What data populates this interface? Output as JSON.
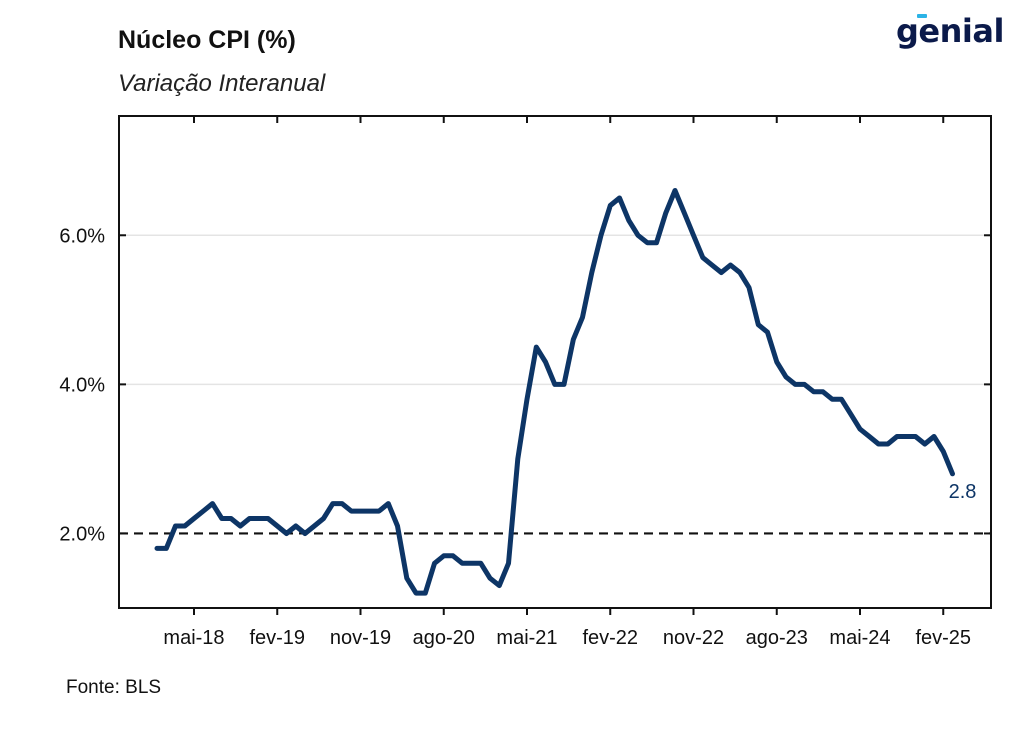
{
  "chart_data": {
    "type": "line",
    "title": "Núcleo CPI (%)",
    "subtitle": "Variação Interanual",
    "source": "Fonte: BLS",
    "brand": "genial",
    "x_tick_labels": [
      "mai-18",
      "fev-19",
      "nov-19",
      "ago-20",
      "mai-21",
      "fev-22",
      "nov-22",
      "ago-23",
      "mai-24",
      "fev-25"
    ],
    "y_tick_labels": [
      "2.0%",
      "4.0%",
      "6.0%"
    ],
    "y_ticks": [
      2.0,
      4.0,
      6.0
    ],
    "ylim": [
      1.0,
      7.6
    ],
    "reference_line": 2.0,
    "grid": "horizontal",
    "line_color": "#0d3566",
    "end_label": "2.8",
    "series": [
      {
        "x": [
          "jan-18",
          "fev-18",
          "mar-18",
          "abr-18",
          "mai-18",
          "jun-18",
          "jul-18",
          "ago-18",
          "set-18",
          "out-18",
          "nov-18",
          "dez-18",
          "jan-19",
          "fev-19",
          "mar-19",
          "abr-19",
          "mai-19",
          "jun-19",
          "jul-19",
          "ago-19",
          "set-19",
          "out-19",
          "nov-19",
          "dez-19",
          "jan-20",
          "fev-20",
          "mar-20",
          "abr-20",
          "mai-20",
          "jun-20",
          "jul-20",
          "ago-20",
          "set-20",
          "out-20",
          "nov-20",
          "dez-20",
          "jan-21",
          "fev-21",
          "mar-21",
          "abr-21",
          "mai-21",
          "jun-21",
          "jul-21",
          "ago-21",
          "set-21",
          "out-21",
          "nov-21",
          "dez-21",
          "jan-22",
          "fev-22",
          "mar-22",
          "abr-22",
          "mai-22",
          "jun-22",
          "jul-22",
          "ago-22",
          "set-22",
          "out-22",
          "nov-22",
          "dez-22",
          "jan-23",
          "fev-23",
          "mar-23",
          "abr-23",
          "mai-23",
          "jun-23",
          "jul-23",
          "ago-23",
          "set-23",
          "out-23",
          "nov-23",
          "dez-23",
          "jan-24",
          "fev-24",
          "mar-24",
          "abr-24",
          "mai-24",
          "jun-24",
          "jul-24",
          "ago-24",
          "set-24",
          "out-24",
          "nov-24",
          "dez-24",
          "jan-25",
          "fev-25",
          "mar-25"
        ],
        "values": [
          1.8,
          1.8,
          2.1,
          2.1,
          2.2,
          2.3,
          2.4,
          2.2,
          2.2,
          2.1,
          2.2,
          2.2,
          2.2,
          2.1,
          2.0,
          2.1,
          2.0,
          2.1,
          2.2,
          2.4,
          2.4,
          2.3,
          2.3,
          2.3,
          2.3,
          2.4,
          2.1,
          1.4,
          1.2,
          1.2,
          1.6,
          1.7,
          1.7,
          1.6,
          1.6,
          1.6,
          1.4,
          1.3,
          1.6,
          3.0,
          3.8,
          4.5,
          4.3,
          4.0,
          4.0,
          4.6,
          4.9,
          5.5,
          6.0,
          6.4,
          6.5,
          6.2,
          6.0,
          5.9,
          5.9,
          6.3,
          6.6,
          6.3,
          6.0,
          5.7,
          5.6,
          5.5,
          5.6,
          5.5,
          5.3,
          4.8,
          4.7,
          4.3,
          4.1,
          4.0,
          4.0,
          3.9,
          3.9,
          3.8,
          3.8,
          3.6,
          3.4,
          3.3,
          3.2,
          3.2,
          3.3,
          3.3,
          3.3,
          3.2,
          3.3,
          3.1,
          2.8
        ]
      }
    ]
  }
}
